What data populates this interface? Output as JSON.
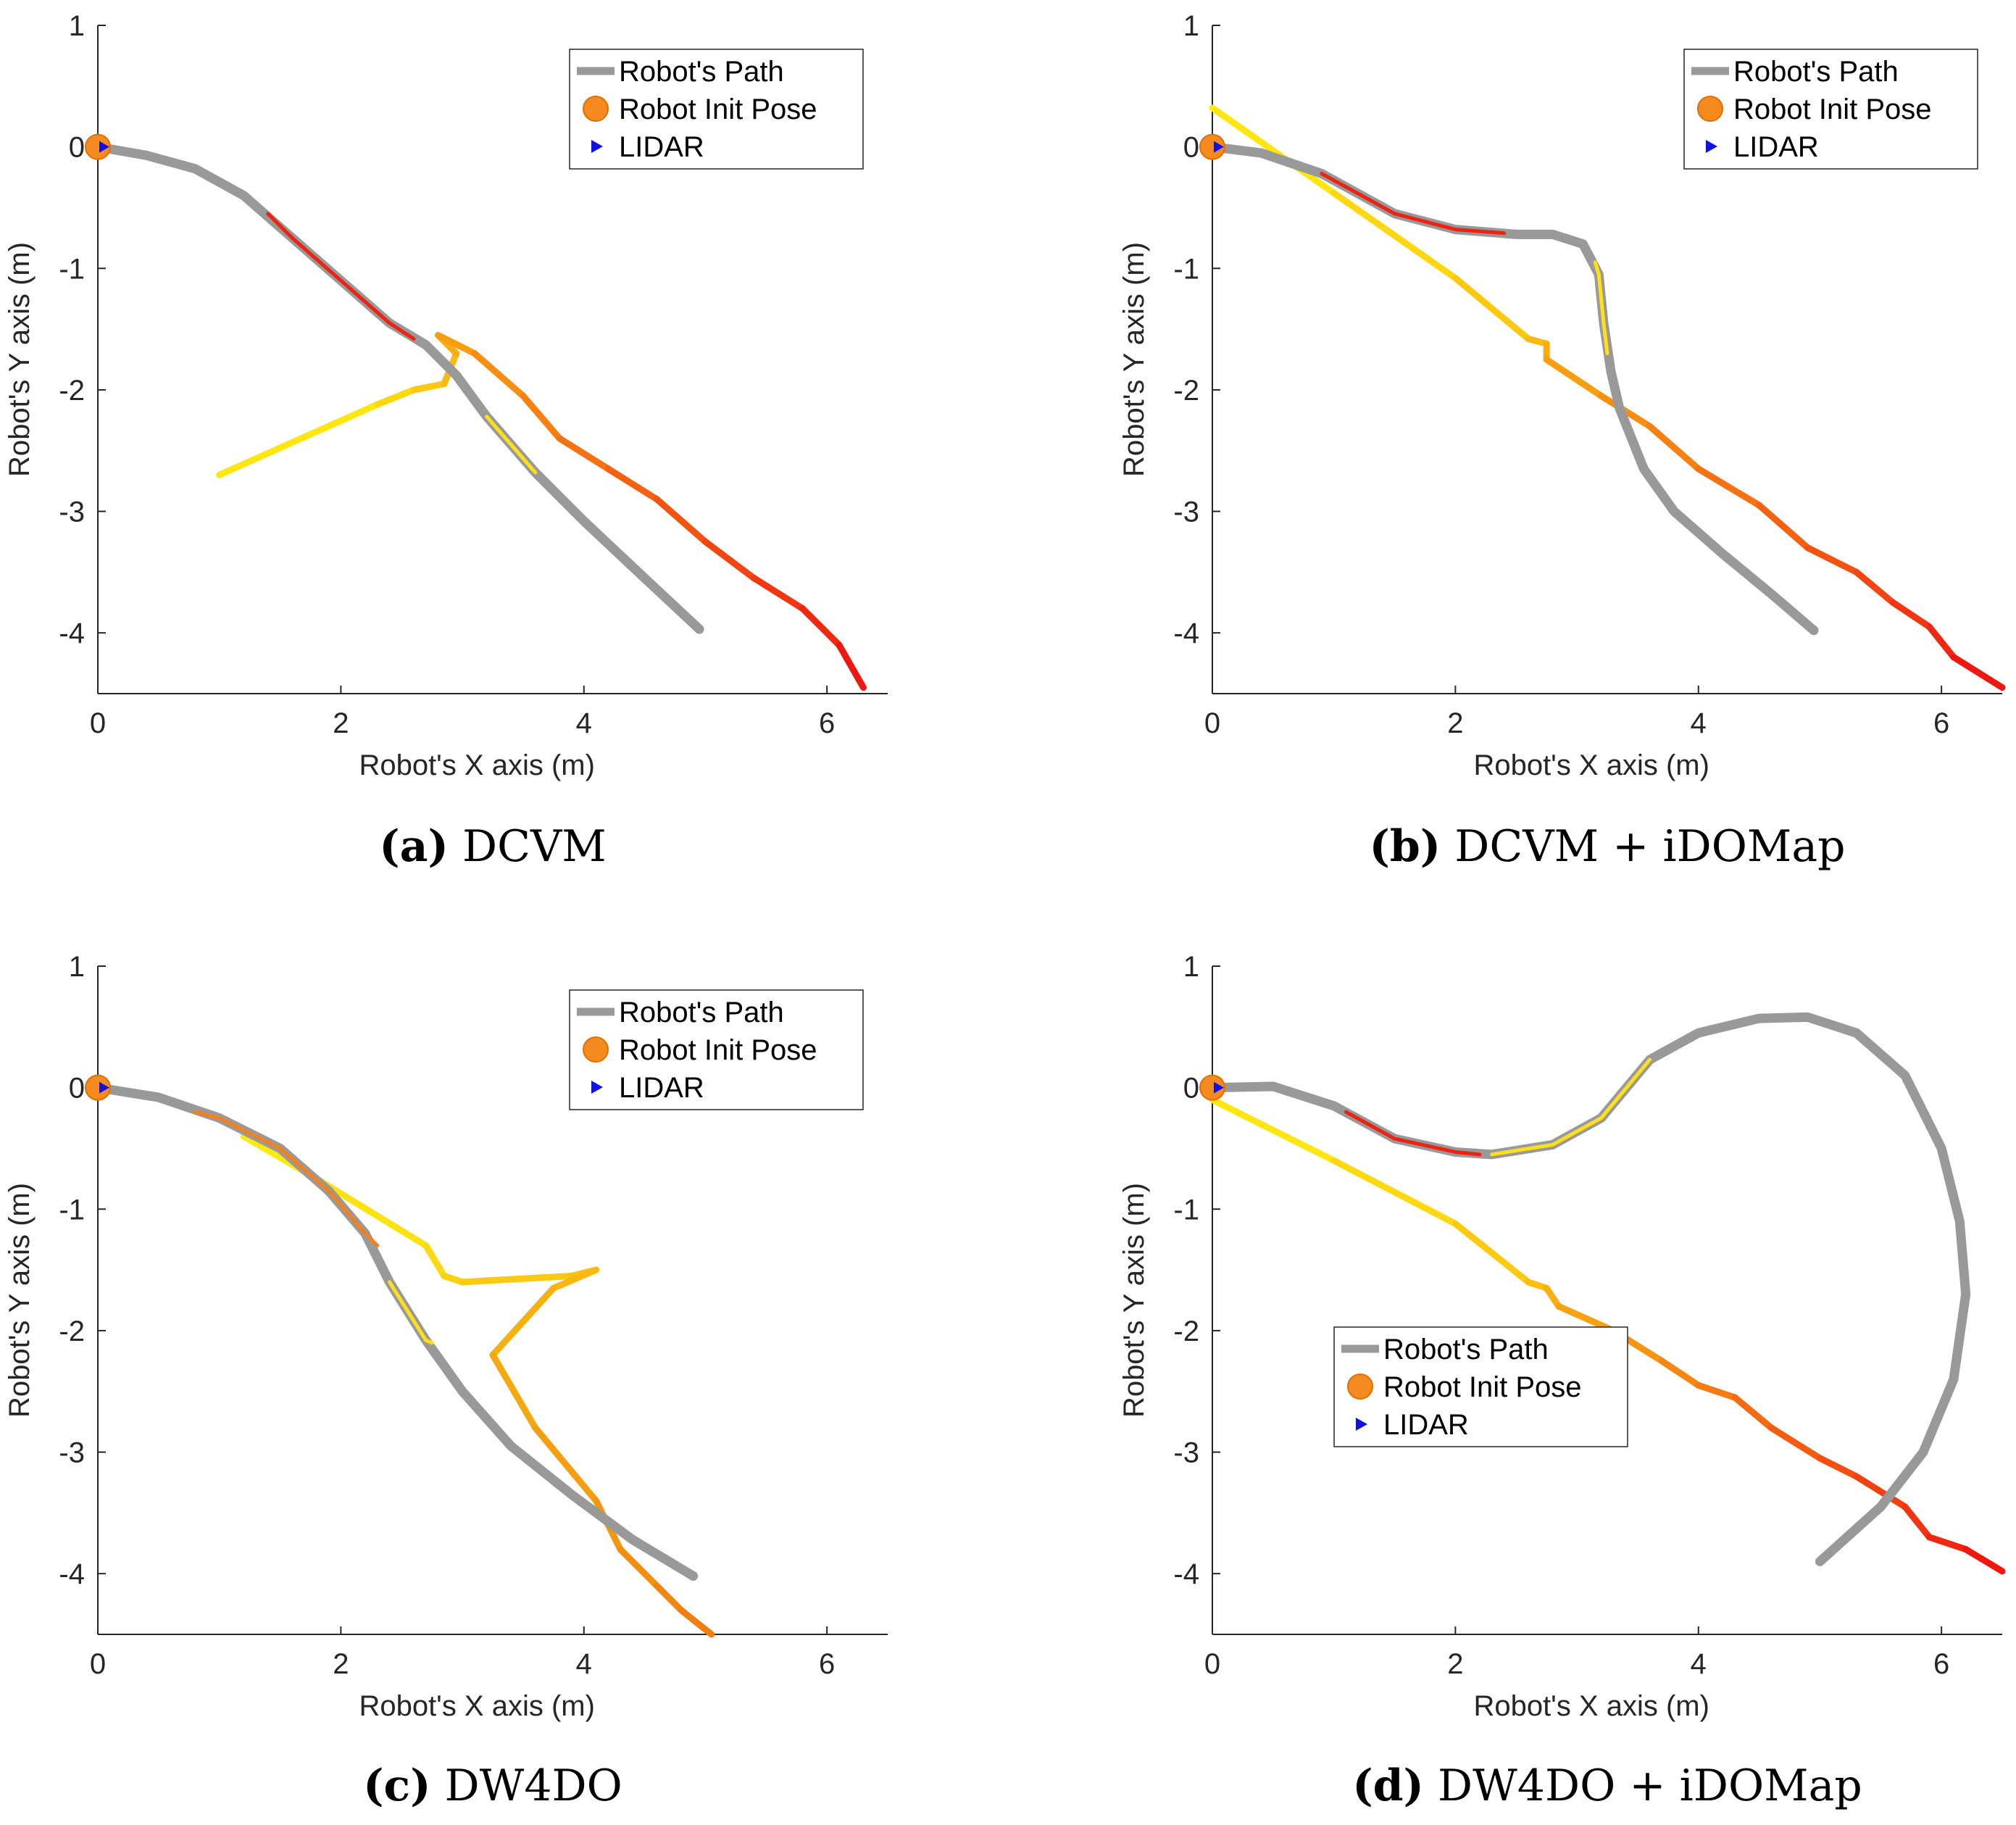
{
  "chart_data": [
    {
      "type": "line",
      "caption_label": "(a)",
      "caption_text": "DCVM",
      "xlabel": "Robot's X axis (m)",
      "ylabel": "Robot's Y axis (m)",
      "xlim": [
        0,
        6.5
      ],
      "ylim": [
        -4.5,
        1
      ],
      "xticks": [
        "0",
        "2",
        "4",
        "6"
      ],
      "yticks": [
        "1",
        "0",
        "-1",
        "-2",
        "-3",
        "-4"
      ],
      "legend": {
        "position": "top-right",
        "entries": [
          "Robot's Path",
          "Robot Init Pose",
          "LIDAR"
        ]
      },
      "init_pose": {
        "x": 0,
        "y": 0
      },
      "robot_path": {
        "color": "#999999",
        "points": [
          [
            0,
            0
          ],
          [
            0.4,
            -0.07
          ],
          [
            0.8,
            -0.18
          ],
          [
            1.2,
            -0.4
          ],
          [
            1.6,
            -0.75
          ],
          [
            2.0,
            -1.1
          ],
          [
            2.4,
            -1.45
          ],
          [
            2.7,
            -1.63
          ],
          [
            2.95,
            -1.88
          ],
          [
            3.2,
            -2.22
          ],
          [
            3.6,
            -2.68
          ],
          [
            4.0,
            -3.08
          ],
          [
            4.5,
            -3.55
          ],
          [
            4.95,
            -3.97
          ]
        ],
        "highlights": [
          {
            "from": [
              1.4,
              -0.55
            ],
            "to": [
              2.6,
              -1.58
            ],
            "color": "#ee2211"
          },
          {
            "from": [
              3.2,
              -2.22
            ],
            "to": [
              3.6,
              -2.68
            ],
            "color": "#ffe01a"
          }
        ]
      },
      "obstacle_trajectory": {
        "points": [
          [
            1.0,
            -2.7
          ],
          [
            2.3,
            -2.12
          ],
          [
            2.6,
            -2.0
          ],
          [
            2.85,
            -1.95
          ],
          [
            2.95,
            -1.7
          ],
          [
            2.8,
            -1.55
          ],
          [
            3.1,
            -1.7
          ],
          [
            3.5,
            -2.05
          ],
          [
            3.8,
            -2.4
          ],
          [
            4.2,
            -2.65
          ],
          [
            4.6,
            -2.9
          ],
          [
            5.0,
            -3.25
          ],
          [
            5.4,
            -3.55
          ],
          [
            5.8,
            -3.8
          ],
          [
            6.1,
            -4.1
          ],
          [
            6.3,
            -4.45
          ]
        ],
        "start_color": "#ffee11",
        "end_color": "#ee1111"
      }
    },
    {
      "type": "line",
      "caption_label": "(b)",
      "caption_text": "DCVM + iDOMap",
      "xlabel": "Robot's X axis (m)",
      "ylabel": "Robot's Y axis (m)",
      "xlim": [
        0,
        6.5
      ],
      "ylim": [
        -4.5,
        1
      ],
      "xticks": [
        "0",
        "2",
        "4",
        "6"
      ],
      "yticks": [
        "1",
        "0",
        "-1",
        "-2",
        "-3",
        "-4"
      ],
      "legend": {
        "position": "top-right",
        "entries": [
          "Robot's Path",
          "Robot Init Pose",
          "LIDAR"
        ]
      },
      "init_pose": {
        "x": 0,
        "y": 0
      },
      "robot_path": {
        "color": "#999999",
        "points": [
          [
            0,
            0
          ],
          [
            0.4,
            -0.05
          ],
          [
            0.9,
            -0.22
          ],
          [
            1.5,
            -0.55
          ],
          [
            2.0,
            -0.68
          ],
          [
            2.5,
            -0.72
          ],
          [
            2.8,
            -0.72
          ],
          [
            3.05,
            -0.8
          ],
          [
            3.18,
            -1.05
          ],
          [
            3.22,
            -1.45
          ],
          [
            3.28,
            -1.85
          ],
          [
            3.35,
            -2.15
          ],
          [
            3.55,
            -2.65
          ],
          [
            3.8,
            -3.0
          ],
          [
            4.2,
            -3.35
          ],
          [
            4.6,
            -3.68
          ],
          [
            4.95,
            -3.98
          ]
        ],
        "highlights": [
          {
            "from": [
              0.9,
              -0.22
            ],
            "to": [
              2.4,
              -0.71
            ],
            "color": "#ee2211"
          },
          {
            "from": [
              3.15,
              -0.95
            ],
            "to": [
              3.25,
              -1.7
            ],
            "color": "#ffe01a"
          }
        ]
      },
      "obstacle_trajectory": {
        "points": [
          [
            0,
            0.32
          ],
          [
            1.0,
            -0.38
          ],
          [
            2.0,
            -1.08
          ],
          [
            2.6,
            -1.58
          ],
          [
            2.75,
            -1.62
          ],
          [
            2.75,
            -1.75
          ],
          [
            3.2,
            -2.05
          ],
          [
            3.6,
            -2.3
          ],
          [
            4.0,
            -2.65
          ],
          [
            4.5,
            -2.95
          ],
          [
            4.9,
            -3.3
          ],
          [
            5.3,
            -3.5
          ],
          [
            5.6,
            -3.75
          ],
          [
            5.9,
            -3.95
          ],
          [
            6.1,
            -4.2
          ],
          [
            6.5,
            -4.45
          ]
        ],
        "start_color": "#ffee11",
        "end_color": "#ee1111"
      }
    },
    {
      "type": "line",
      "caption_label": "(c)",
      "caption_text": "DW4DO",
      "xlabel": "Robot's X axis (m)",
      "ylabel": "Robot's Y axis (m)",
      "xlim": [
        0,
        6.5
      ],
      "ylim": [
        -4.5,
        1
      ],
      "xticks": [
        "0",
        "2",
        "4",
        "6"
      ],
      "yticks": [
        "1",
        "0",
        "-1",
        "-2",
        "-3",
        "-4"
      ],
      "legend": {
        "position": "top-right",
        "entries": [
          "Robot's Path",
          "Robot Init Pose",
          "LIDAR"
        ]
      },
      "init_pose": {
        "x": 0,
        "y": 0
      },
      "robot_path": {
        "color": "#999999",
        "points": [
          [
            0,
            0
          ],
          [
            0.5,
            -0.08
          ],
          [
            1.0,
            -0.25
          ],
          [
            1.5,
            -0.5
          ],
          [
            1.9,
            -0.85
          ],
          [
            2.2,
            -1.2
          ],
          [
            2.4,
            -1.6
          ],
          [
            2.7,
            -2.08
          ],
          [
            3.0,
            -2.5
          ],
          [
            3.4,
            -2.95
          ],
          [
            3.9,
            -3.35
          ],
          [
            4.4,
            -3.72
          ],
          [
            4.9,
            -4.02
          ]
        ],
        "highlights": [
          {
            "from": [
              0.8,
              -0.2
            ],
            "to": [
              2.3,
              -1.3
            ],
            "color": "#f08020"
          },
          {
            "from": [
              2.4,
              -1.6
            ],
            "to": [
              2.75,
              -2.1
            ],
            "color": "#ffe01a"
          }
        ]
      },
      "obstacle_trajectory": {
        "points": [
          [
            1.2,
            -0.4
          ],
          [
            1.8,
            -0.75
          ],
          [
            2.7,
            -1.3
          ],
          [
            2.85,
            -1.55
          ],
          [
            3.0,
            -1.6
          ],
          [
            3.9,
            -1.55
          ],
          [
            4.1,
            -1.5
          ],
          [
            3.75,
            -1.65
          ],
          [
            3.25,
            -2.2
          ],
          [
            3.6,
            -2.8
          ],
          [
            4.1,
            -3.4
          ],
          [
            4.3,
            -3.8
          ],
          [
            4.6,
            -4.1
          ],
          [
            4.8,
            -4.3
          ],
          [
            5.05,
            -4.5
          ]
        ],
        "start_color": "#ffee11",
        "end_color": "#f07a10"
      }
    },
    {
      "type": "line",
      "caption_label": "(d)",
      "caption_text": "DW4DO + iDOMap",
      "xlabel": "Robot's X axis (m)",
      "ylabel": "Robot's Y axis (m)",
      "xlim": [
        0,
        6.5
      ],
      "ylim": [
        -4.5,
        1
      ],
      "xticks": [
        "0",
        "2",
        "4",
        "6"
      ],
      "yticks": [
        "1",
        "0",
        "-1",
        "-2",
        "-3",
        "-4"
      ],
      "legend": {
        "position": "bottom-left",
        "entries": [
          "Robot's Path",
          "Robot Init Pose",
          "LIDAR"
        ]
      },
      "init_pose": {
        "x": 0,
        "y": 0
      },
      "robot_path": {
        "color": "#999999",
        "points": [
          [
            0,
            0
          ],
          [
            0.5,
            0.01
          ],
          [
            1.0,
            -0.15
          ],
          [
            1.5,
            -0.42
          ],
          [
            2.0,
            -0.53
          ],
          [
            2.3,
            -0.55
          ],
          [
            2.8,
            -0.47
          ],
          [
            3.2,
            -0.25
          ],
          [
            3.6,
            0.23
          ],
          [
            4.0,
            0.45
          ],
          [
            4.5,
            0.57
          ],
          [
            4.9,
            0.58
          ],
          [
            5.3,
            0.45
          ],
          [
            5.7,
            0.1
          ],
          [
            6.0,
            -0.5
          ],
          [
            6.15,
            -1.1
          ],
          [
            6.2,
            -1.7
          ],
          [
            6.1,
            -2.4
          ],
          [
            5.85,
            -3.0
          ],
          [
            5.5,
            -3.45
          ],
          [
            5.0,
            -3.9
          ]
        ],
        "highlights": [
          {
            "from": [
              1.1,
              -0.2
            ],
            "to": [
              2.2,
              -0.55
            ],
            "color": "#ee2211"
          },
          {
            "from": [
              2.3,
              -0.55
            ],
            "to": [
              3.6,
              0.23
            ],
            "color": "#ffe01a"
          }
        ]
      },
      "obstacle_trajectory": {
        "points": [
          [
            0,
            -0.1
          ],
          [
            1.0,
            -0.6
          ],
          [
            2.0,
            -1.12
          ],
          [
            2.6,
            -1.6
          ],
          [
            2.75,
            -1.65
          ],
          [
            2.85,
            -1.8
          ],
          [
            3.3,
            -2.0
          ],
          [
            3.7,
            -2.25
          ],
          [
            4.0,
            -2.45
          ],
          [
            4.3,
            -2.55
          ],
          [
            4.6,
            -2.8
          ],
          [
            5.0,
            -3.05
          ],
          [
            5.3,
            -3.2
          ],
          [
            5.7,
            -3.45
          ],
          [
            5.9,
            -3.7
          ],
          [
            6.2,
            -3.8
          ],
          [
            6.5,
            -3.98
          ]
        ],
        "start_color": "#ffee11",
        "end_color": "#ee1111"
      }
    }
  ]
}
